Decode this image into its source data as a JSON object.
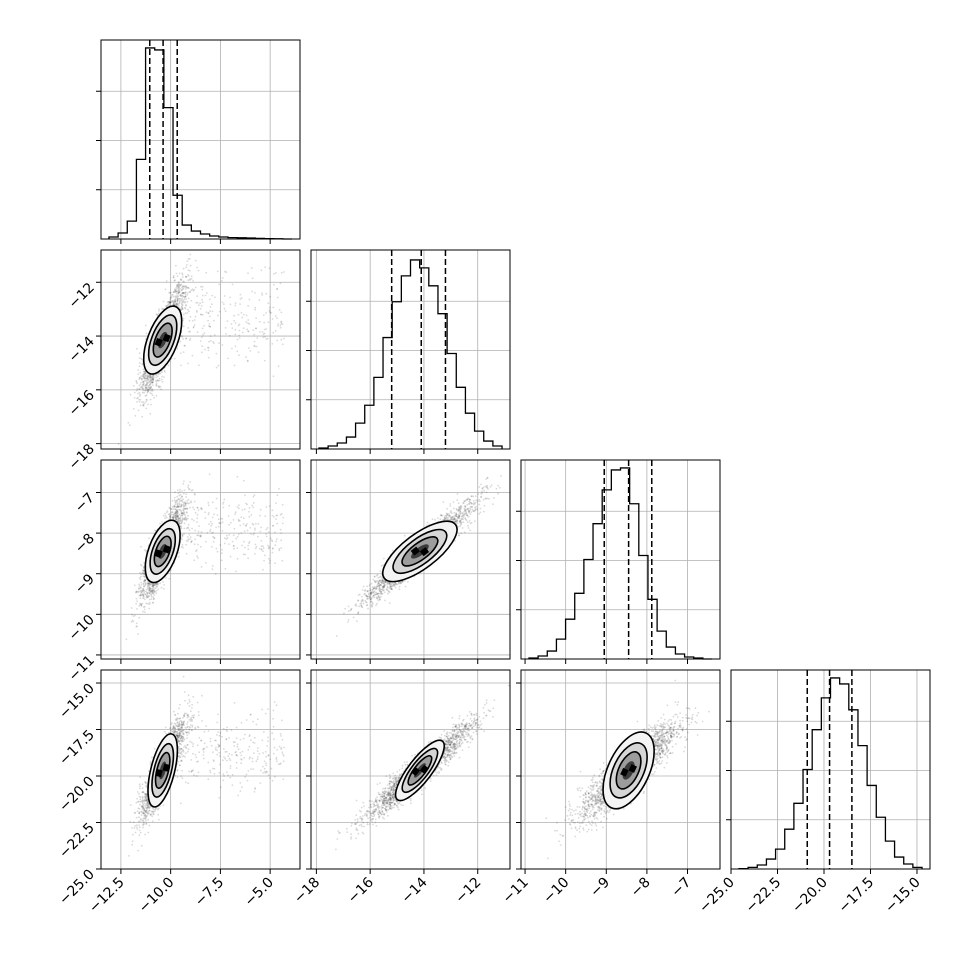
{
  "chart_data": {
    "type": "corner",
    "dimensions": [
      {
        "range": [
          -13.5,
          -3.5
        ],
        "ticks": [
          -12.5,
          -10.0,
          -7.5,
          -5.0
        ],
        "tick_labels": [
          "−12.5",
          "−10.0",
          "−7.5",
          "−5.0"
        ],
        "quantiles": [
          -11.05,
          -10.38,
          -9.67
        ],
        "hist_bins": [
          0.01,
          0.03,
          0.09,
          0.4,
          0.96,
          0.95,
          0.66,
          0.22,
          0.07,
          0.04,
          0.025,
          0.015,
          0.01,
          0.007,
          0.006,
          0.005,
          0.003,
          0.002,
          0.001,
          0.0
        ]
      },
      {
        "range": [
          -18.2,
          -10.8
        ],
        "ticks": [
          -18,
          -16,
          -14,
          -12
        ],
        "tick_labels": [
          "−18",
          "−16",
          "−14",
          "−12"
        ],
        "quantiles": [
          -15.2,
          -14.1,
          -13.2
        ],
        "hist_bins": [
          0.005,
          0.015,
          0.03,
          0.06,
          0.13,
          0.22,
          0.36,
          0.56,
          0.74,
          0.87,
          0.95,
          0.91,
          0.82,
          0.68,
          0.48,
          0.31,
          0.18,
          0.09,
          0.04,
          0.015
        ]
      },
      {
        "range": [
          -11.1,
          -6.2
        ],
        "ticks": [
          -11,
          -10,
          -9,
          -8,
          -7
        ],
        "tick_labels": [
          "−11",
          "−10",
          "−9",
          "−8",
          "−7"
        ],
        "quantiles": [
          -9.05,
          -8.45,
          -7.88
        ],
        "hist_bins": [
          0.005,
          0.015,
          0.04,
          0.1,
          0.2,
          0.33,
          0.5,
          0.68,
          0.85,
          0.95,
          0.96,
          0.78,
          0.52,
          0.3,
          0.14,
          0.06,
          0.025,
          0.01,
          0.005,
          0.0
        ]
      },
      {
        "range": [
          -25.0,
          -14.3
        ],
        "ticks": [
          -25.0,
          -22.5,
          -20.0,
          -17.5,
          -15.0
        ],
        "tick_labels": [
          "−25.0",
          "−22.5",
          "−20.0",
          "−17.5",
          "−15.0"
        ],
        "quantiles": [
          -20.9,
          -19.7,
          -18.5
        ],
        "hist_bins": [
          0.002,
          0.008,
          0.02,
          0.05,
          0.1,
          0.2,
          0.33,
          0.5,
          0.7,
          0.86,
          0.96,
          0.93,
          0.8,
          0.62,
          0.42,
          0.26,
          0.14,
          0.06,
          0.025,
          0.008
        ]
      }
    ],
    "pairs": [
      {
        "i": 1,
        "j": 0,
        "mean": [
          -10.4,
          -14.15
        ],
        "sd": [
          0.55,
          1.0
        ],
        "corr": 0.85,
        "angle_deg": 69,
        "ax": [
          3.1,
          2.3,
          1.55,
          0.75
        ],
        "bx": [
          0.65,
          0.48,
          0.32,
          0.16
        ]
      },
      {
        "i": 2,
        "j": 0,
        "mean": [
          -10.4,
          -8.45
        ],
        "sd": [
          0.55,
          0.6
        ],
        "corr": 0.85,
        "angle_deg": 70,
        "ax": [
          2.3,
          1.68,
          1.12,
          0.55
        ],
        "bx": [
          0.5,
          0.36,
          0.24,
          0.12
        ]
      },
      {
        "i": 2,
        "j": 1,
        "mean": [
          -14.15,
          -8.45
        ],
        "sd": [
          1.0,
          0.6
        ],
        "corr": 0.95,
        "angle_deg": 37,
        "ax": [
          2.7,
          1.95,
          1.3,
          0.65
        ],
        "bx": [
          0.52,
          0.38,
          0.25,
          0.12
        ]
      },
      {
        "i": 3,
        "j": 0,
        "mean": [
          -10.4,
          -19.7
        ],
        "sd": [
          0.55,
          1.3
        ],
        "corr": 0.85,
        "angle_deg": 76,
        "ax": [
          3.9,
          2.85,
          1.9,
          0.95
        ],
        "bx": [
          0.62,
          0.45,
          0.3,
          0.15
        ]
      },
      {
        "i": 3,
        "j": 1,
        "mean": [
          -14.15,
          -19.7
        ],
        "sd": [
          1.0,
          1.3
        ],
        "corr": 0.95,
        "angle_deg": 52.5,
        "ax": [
          3.3,
          2.4,
          1.6,
          0.8
        ],
        "bx": [
          0.52,
          0.38,
          0.25,
          0.12
        ]
      },
      {
        "i": 3,
        "j": 2,
        "mean": [
          -8.45,
          -19.7
        ],
        "sd": [
          0.6,
          1.3
        ],
        "corr": 0.88,
        "angle_deg": 65,
        "ax": [
          3.0,
          2.15,
          1.45,
          0.72
        ],
        "bx": [
          0.75,
          0.55,
          0.36,
          0.18
        ]
      }
    ],
    "grid": true,
    "quantile_lines": "dashed",
    "contour_levels": 3,
    "samples_per_panel": 2200
  }
}
